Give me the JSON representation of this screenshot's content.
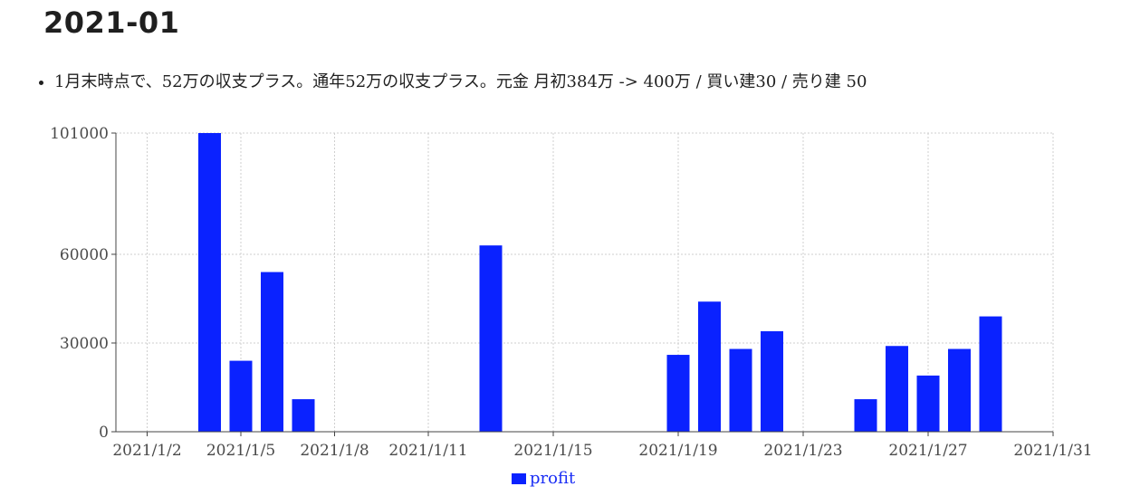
{
  "heading": "2021-01",
  "notes": [
    "1月末時点で、52万の収支プラス。通年52万の収支プラス。元金 月初384万 -> 400万 / 買い建30 / 売り建 50"
  ],
  "colors": {
    "bar": "#0a22ff",
    "legend_text": "#1a2ef5"
  },
  "chart_data": {
    "type": "bar",
    "title": "",
    "xlabel": "",
    "ylabel": "",
    "x_axis": "date",
    "xlim": [
      "2021-01-01",
      "2021-01-31"
    ],
    "ylim": [
      0,
      101000
    ],
    "yticks": [
      0,
      30000,
      60000,
      101000
    ],
    "xticks": [
      "2021/1/2",
      "2021/1/5",
      "2021/1/8",
      "2021/1/11",
      "2021/1/15",
      "2021/1/19",
      "2021/1/23",
      "2021/1/27",
      "2021/1/31"
    ],
    "grid": true,
    "legend": "bottom-center",
    "series": [
      {
        "name": "profit",
        "x": [
          "2021-01-04",
          "2021-01-05",
          "2021-01-06",
          "2021-01-07",
          "2021-01-13",
          "2021-01-19",
          "2021-01-20",
          "2021-01-21",
          "2021-01-22",
          "2021-01-25",
          "2021-01-26",
          "2021-01-27",
          "2021-01-28",
          "2021-01-29"
        ],
        "values": [
          101000,
          24000,
          54000,
          11000,
          63000,
          26000,
          44000,
          28000,
          34000,
          11000,
          29000,
          19000,
          28000,
          39000
        ]
      }
    ]
  }
}
